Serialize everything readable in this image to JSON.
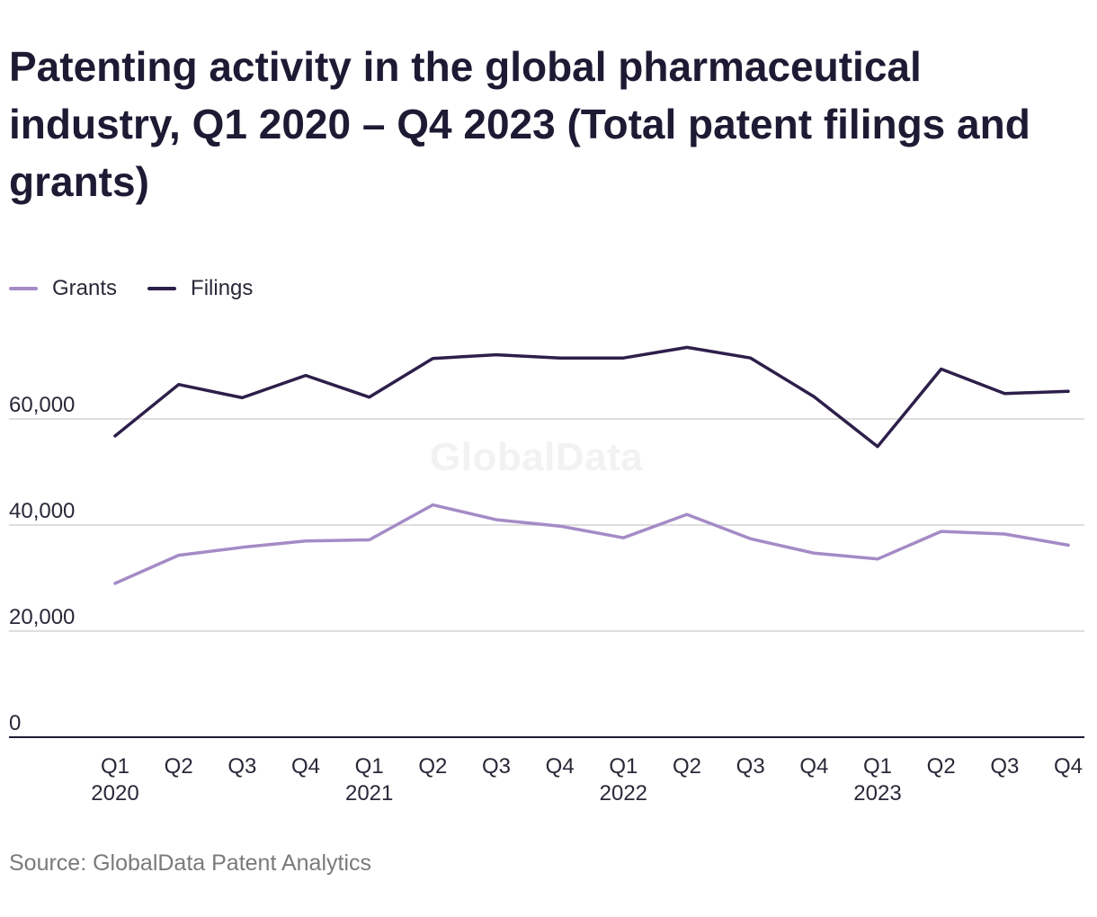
{
  "chart_data": {
    "type": "line",
    "title": "Patenting activity in the global pharmaceutical industry, Q1 2020 – Q4 2023 (Total patent filings and grants)",
    "x": [
      "Q1 2020",
      "Q2 2020",
      "Q3 2020",
      "Q4 2020",
      "Q1 2021",
      "Q2 2021",
      "Q3 2021",
      "Q4 2021",
      "Q1 2022",
      "Q2 2022",
      "Q3 2022",
      "Q4 2022",
      "Q1 2023",
      "Q2 2023",
      "Q3 2023",
      "Q4 2023"
    ],
    "x_tick_labels": [
      {
        "quarter": "Q1",
        "year": "2020"
      },
      {
        "quarter": "Q2",
        "year": ""
      },
      {
        "quarter": "Q3",
        "year": ""
      },
      {
        "quarter": "Q4",
        "year": ""
      },
      {
        "quarter": "Q1",
        "year": "2021"
      },
      {
        "quarter": "Q2",
        "year": ""
      },
      {
        "quarter": "Q3",
        "year": ""
      },
      {
        "quarter": "Q4",
        "year": ""
      },
      {
        "quarter": "Q1",
        "year": "2022"
      },
      {
        "quarter": "Q2",
        "year": ""
      },
      {
        "quarter": "Q3",
        "year": ""
      },
      {
        "quarter": "Q4",
        "year": ""
      },
      {
        "quarter": "Q1",
        "year": "2023"
      },
      {
        "quarter": "Q2",
        "year": ""
      },
      {
        "quarter": "Q3",
        "year": ""
      },
      {
        "quarter": "Q4",
        "year": ""
      }
    ],
    "series": [
      {
        "name": "Grants",
        "color": "#a48bc6",
        "values": [
          29000,
          34300,
          35800,
          37000,
          37200,
          43800,
          41000,
          39800,
          37600,
          42000,
          37400,
          34700,
          33600,
          38800,
          38300,
          36200
        ]
      },
      {
        "name": "Filings",
        "color": "#2d1f4a",
        "values": [
          56800,
          66500,
          64000,
          68200,
          64100,
          71400,
          72100,
          71500,
          71500,
          73500,
          71500,
          64200,
          54800,
          69400,
          64800,
          65200
        ]
      }
    ],
    "y_ticks": [
      {
        "value": 0,
        "label": "0"
      },
      {
        "value": 20000,
        "label": "20,000"
      },
      {
        "value": 40000,
        "label": "40,000"
      },
      {
        "value": 60000,
        "label": "60,000"
      }
    ],
    "ylim": [
      0,
      80000
    ],
    "xlabel": "",
    "ylabel": "",
    "grid": true,
    "legend": "top-left"
  },
  "watermark": "GlobalData",
  "source": "Source: GlobalData Patent Analytics"
}
